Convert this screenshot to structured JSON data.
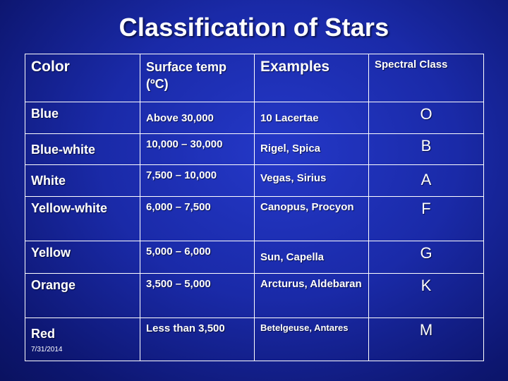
{
  "title": "Classification of Stars",
  "table": {
    "headers": {
      "color": "Color",
      "temp": "Surface temp (ºC)",
      "examples": "Examples",
      "spectral": "Spectral Class"
    },
    "rows": [
      {
        "color": "Blue",
        "temp": "Above 30,000",
        "examples": "10 Lacertae",
        "class": "O"
      },
      {
        "color": "Blue-white",
        "temp": "10,000 – 30,000",
        "examples": "Rigel, Spica",
        "class": "B"
      },
      {
        "color": "White",
        "temp": "7,500 – 10,000",
        "examples": "Vegas, Sirius",
        "class": "A"
      },
      {
        "color": "Yellow-white",
        "temp": "6,000 – 7,500",
        "examples": "Canopus, Procyon",
        "class": "F"
      },
      {
        "color": "Yellow",
        "temp": "5,000 – 6,000",
        "examples": "Sun, Capella",
        "class": "G"
      },
      {
        "color": "Orange",
        "temp": "3,500 – 5,000",
        "examples": "Arcturus, Aldebaran",
        "class": "K"
      },
      {
        "color": "Red",
        "temp": "Less than 3,500",
        "examples": "Betelgeuse, Antares",
        "class": "M"
      }
    ]
  },
  "footer": {
    "date": "7/31/2014"
  },
  "colors": {
    "background": "#1a2aa8",
    "text": "#ffffff",
    "grid": "#ffffff"
  }
}
